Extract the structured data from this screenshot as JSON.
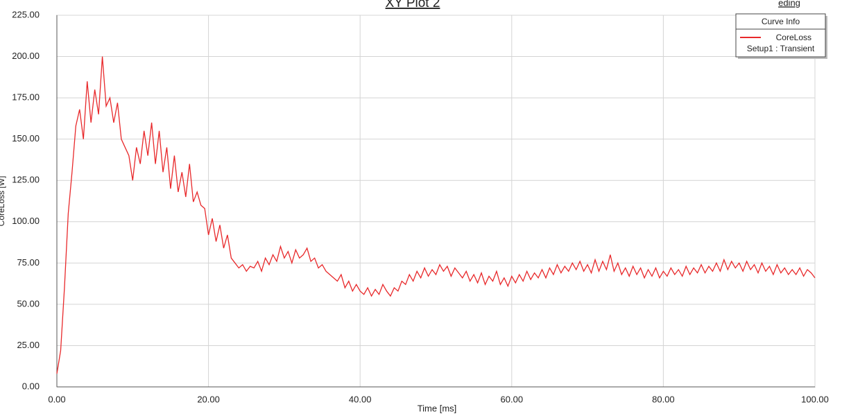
{
  "chart_data": {
    "type": "line",
    "title": "XY Plot 2",
    "corner_text": "eding",
    "xlabel": "Time [ms]",
    "ylabel": "CoreLoss [W]",
    "legend": {
      "title": "Curve Info",
      "position": "upper right"
    },
    "grid": true,
    "xlim": [
      0,
      100
    ],
    "ylim": [
      0,
      225
    ],
    "xticks": [
      {
        "value": 0,
        "label": "0.00"
      },
      {
        "value": 20,
        "label": "20.00"
      },
      {
        "value": 40,
        "label": "40.00"
      },
      {
        "value": 60,
        "label": "60.00"
      },
      {
        "value": 80,
        "label": "80.00"
      },
      {
        "value": 100,
        "label": "100.00"
      }
    ],
    "yticks": [
      {
        "value": 0,
        "label": "0.00"
      },
      {
        "value": 25,
        "label": "25.00"
      },
      {
        "value": 50,
        "label": "50.00"
      },
      {
        "value": 75,
        "label": "75.00"
      },
      {
        "value": 100,
        "label": "100.00"
      },
      {
        "value": 125,
        "label": "125.00"
      },
      {
        "value": 150,
        "label": "150.00"
      },
      {
        "value": 175,
        "label": "175.00"
      },
      {
        "value": 200,
        "label": "200.00"
      },
      {
        "value": 225,
        "label": "225.00"
      }
    ],
    "x": [
      0,
      0.5,
      1,
      1.5,
      2,
      2.5,
      3,
      3.5,
      4,
      4.5,
      5,
      5.5,
      6,
      6.5,
      7,
      7.5,
      8,
      8.5,
      9,
      9.5,
      10,
      10.5,
      11,
      11.5,
      12,
      12.5,
      13,
      13.5,
      14,
      14.5,
      15,
      15.5,
      16,
      16.5,
      17,
      17.5,
      18,
      18.5,
      19,
      19.5,
      20,
      20.5,
      21,
      21.5,
      22,
      22.5,
      23,
      23.5,
      24,
      24.5,
      25,
      25.5,
      26,
      26.5,
      27,
      27.5,
      28,
      28.5,
      29,
      29.5,
      30,
      30.5,
      31,
      31.5,
      32,
      32.5,
      33,
      33.5,
      34,
      34.5,
      35,
      35.5,
      36,
      36.5,
      37,
      37.5,
      38,
      38.5,
      39,
      39.5,
      40,
      40.5,
      41,
      41.5,
      42,
      42.5,
      43,
      43.5,
      44,
      44.5,
      45,
      45.5,
      46,
      46.5,
      47,
      47.5,
      48,
      48.5,
      49,
      49.5,
      50,
      50.5,
      51,
      51.5,
      52,
      52.5,
      53,
      53.5,
      54,
      54.5,
      55,
      55.5,
      56,
      56.5,
      57,
      57.5,
      58,
      58.5,
      59,
      59.5,
      60,
      60.5,
      61,
      61.5,
      62,
      62.5,
      63,
      63.5,
      64,
      64.5,
      65,
      65.5,
      66,
      66.5,
      67,
      67.5,
      68,
      68.5,
      69,
      69.5,
      70,
      70.5,
      71,
      71.5,
      72,
      72.5,
      73,
      73.5,
      74,
      74.5,
      75,
      75.5,
      76,
      76.5,
      77,
      77.5,
      78,
      78.5,
      79,
      79.5,
      80,
      80.5,
      81,
      81.5,
      82,
      82.5,
      83,
      83.5,
      84,
      84.5,
      85,
      85.5,
      86,
      86.5,
      87,
      87.5,
      88,
      88.5,
      89,
      89.5,
      90,
      90.5,
      91,
      91.5,
      92,
      92.5,
      93,
      93.5,
      94,
      94.5,
      95,
      95.5,
      96,
      96.5,
      97,
      97.5,
      98,
      98.5,
      99,
      99.5,
      100
    ],
    "series": [
      {
        "name": "CoreLoss",
        "setup": "Setup1 : Transient",
        "color": "#e8282a",
        "values": [
          8,
          22,
          60,
          105,
          130,
          158,
          168,
          150,
          185,
          160,
          180,
          165,
          200,
          170,
          175,
          160,
          172,
          150,
          145,
          140,
          125,
          145,
          135,
          155,
          140,
          160,
          135,
          155,
          130,
          145,
          120,
          140,
          118,
          130,
          115,
          135,
          112,
          118,
          110,
          108,
          92,
          102,
          88,
          98,
          84,
          92,
          78,
          75,
          72,
          74,
          70,
          73,
          72,
          76,
          70,
          78,
          74,
          80,
          76,
          85,
          78,
          82,
          75,
          83,
          78,
          80,
          84,
          76,
          78,
          72,
          74,
          70,
          68,
          66,
          64,
          68,
          60,
          64,
          58,
          62,
          58,
          56,
          60,
          55,
          59,
          56,
          62,
          58,
          55,
          60,
          58,
          64,
          62,
          68,
          64,
          70,
          66,
          72,
          67,
          71,
          68,
          74,
          70,
          73,
          67,
          72,
          69,
          66,
          70,
          64,
          68,
          63,
          69,
          62,
          67,
          64,
          70,
          62,
          66,
          61,
          67,
          63,
          68,
          64,
          70,
          65,
          69,
          66,
          71,
          66,
          72,
          68,
          74,
          69,
          73,
          70,
          75,
          71,
          76,
          70,
          74,
          69,
          77,
          70,
          76,
          71,
          80,
          70,
          75,
          68,
          72,
          67,
          73,
          68,
          72,
          66,
          71,
          67,
          72,
          66,
          70,
          67,
          72,
          68,
          71,
          67,
          73,
          68,
          72,
          69,
          74,
          69,
          73,
          70,
          75,
          70,
          77,
          71,
          76,
          72,
          75,
          70,
          76,
          71,
          74,
          69,
          75,
          70,
          73,
          68,
          74,
          69,
          72,
          68,
          71,
          68,
          72,
          67,
          71,
          69,
          66
        ]
      }
    ]
  }
}
